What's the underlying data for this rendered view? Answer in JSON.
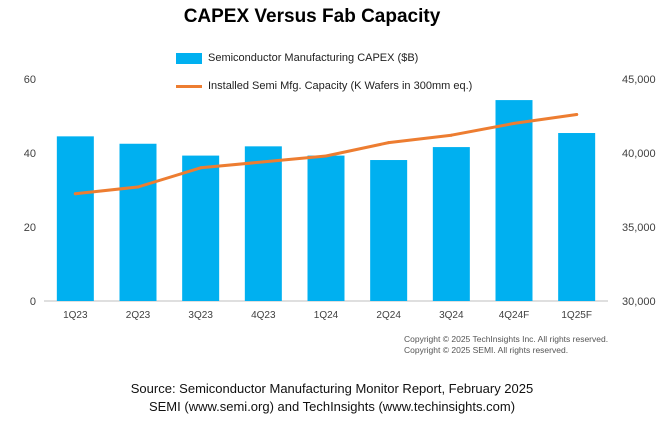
{
  "chart_data": {
    "type": "bar",
    "title": "CAPEX Versus Fab Capacity",
    "categories": [
      "1Q23",
      "2Q23",
      "3Q23",
      "4Q23",
      "1Q24",
      "2Q24",
      "3Q24",
      "4Q24F",
      "1Q25F"
    ],
    "series": [
      {
        "name": "Semiconductor Manufacturing CAPEX ($B)",
        "type": "bar",
        "axis": "left",
        "color": "#00b0f0",
        "values": [
          44.5,
          42.5,
          39.3,
          41.8,
          39.3,
          38.1,
          41.6,
          54.3,
          45.4
        ]
      },
      {
        "name": "Installed Semi Mfg. Capacity (K Wafers in 300mm eq.)",
        "type": "line",
        "axis": "right",
        "color": "#ed7d31",
        "values": [
          37250,
          37700,
          39000,
          39400,
          39800,
          40700,
          41200,
          42000,
          42600
        ]
      }
    ],
    "y_left": {
      "ylim": [
        0,
        60
      ],
      "ticks": [
        "0",
        "20",
        "40",
        "60"
      ]
    },
    "y_right": {
      "ylim": [
        30000,
        45000
      ],
      "ticks": [
        "30,000",
        "35,000",
        "40,000",
        "45,000"
      ]
    },
    "legend_position": "top"
  },
  "copyright": {
    "line1": "Copyright © 2025 TechInsights Inc.  All rights reserved.",
    "line2": "Copyright © 2025 SEMI.  All rights reserved."
  },
  "source": {
    "line1": "Source: Semiconductor Manufacturing Monitor Report, February 2025",
    "line2": "SEMI (www.semi.org) and TechInsights (www.techinsights.com)"
  }
}
